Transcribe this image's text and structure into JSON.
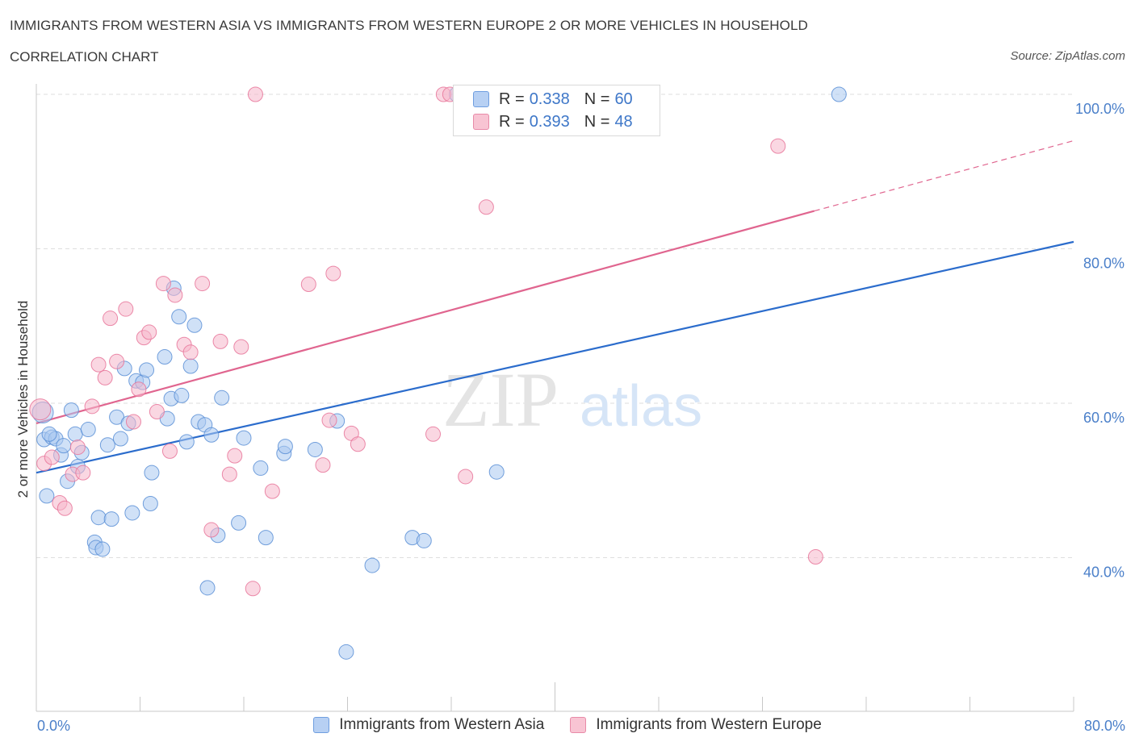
{
  "header": {
    "title": "IMMIGRANTS FROM WESTERN ASIA VS IMMIGRANTS FROM WESTERN EUROPE 2 OR MORE VEHICLES IN HOUSEHOLD",
    "subtitle": "CORRELATION CHART",
    "source": "Source: ZipAtlas.com"
  },
  "watermark": {
    "zip": "ZIP",
    "atlas": "atlas"
  },
  "legend_top": {
    "r_label": "R = ",
    "n_label": "N = ",
    "series1": {
      "r": "0.338",
      "n": "60"
    },
    "series2": {
      "r": "0.393",
      "n": "48"
    }
  },
  "chart_data": {
    "type": "scatter",
    "xlabel": "",
    "ylabel": "2 or more Vehicles in Household",
    "xlim": [
      0,
      80
    ],
    "ylim": [
      20,
      100
    ],
    "x_tick_labels": [
      "0.0%",
      "80.0%"
    ],
    "y_ticks": [
      40,
      60,
      80,
      100
    ],
    "y_tick_labels": [
      "40.0%",
      "60.0%",
      "80.0%",
      "100.0%"
    ],
    "grid": "horizontal dashed",
    "legend_position": "bottom",
    "colors": {
      "blue": "#5b8fd6",
      "blue_fill": "#a9c8f0",
      "pink": "#e8769a",
      "pink_fill": "#f5b7ca",
      "blue_line": "#2b6ccc",
      "pink_line": "#e0658f"
    },
    "series": [
      {
        "name": "Immigrants from Western Asia",
        "color": "blue",
        "trend": {
          "x0": 0,
          "y0": 51.0,
          "x1": 80,
          "y1": 80.9
        },
        "points": [
          [
            0.5,
            58.8
          ],
          [
            0.6,
            55.3
          ],
          [
            0.8,
            48.0
          ],
          [
            1.2,
            55.6
          ],
          [
            1.5,
            55.4
          ],
          [
            1.9,
            53.3
          ],
          [
            2.1,
            54.5
          ],
          [
            2.4,
            49.9
          ],
          [
            2.7,
            59.1
          ],
          [
            3.0,
            56.0
          ],
          [
            3.2,
            51.8
          ],
          [
            3.5,
            53.6
          ],
          [
            4.0,
            56.6
          ],
          [
            4.5,
            42.0
          ],
          [
            4.6,
            41.3
          ],
          [
            4.8,
            45.2
          ],
          [
            5.1,
            41.1
          ],
          [
            5.5,
            54.6
          ],
          [
            5.8,
            45.0
          ],
          [
            6.2,
            58.2
          ],
          [
            6.5,
            55.4
          ],
          [
            6.8,
            64.5
          ],
          [
            7.1,
            57.4
          ],
          [
            7.4,
            45.8
          ],
          [
            7.7,
            62.9
          ],
          [
            8.2,
            62.7
          ],
          [
            8.5,
            64.3
          ],
          [
            8.8,
            47.0
          ],
          [
            8.9,
            51.0
          ],
          [
            9.9,
            66.0
          ],
          [
            10.1,
            58.0
          ],
          [
            10.4,
            60.6
          ],
          [
            10.6,
            74.9
          ],
          [
            11.0,
            71.2
          ],
          [
            11.2,
            61.0
          ],
          [
            11.6,
            55.0
          ],
          [
            11.9,
            64.8
          ],
          [
            12.2,
            70.1
          ],
          [
            12.5,
            57.6
          ],
          [
            13.0,
            57.2
          ],
          [
            13.5,
            55.9
          ],
          [
            14.3,
            60.7
          ],
          [
            13.2,
            36.1
          ],
          [
            14.0,
            42.9
          ],
          [
            15.6,
            44.5
          ],
          [
            16.0,
            55.5
          ],
          [
            17.3,
            51.6
          ],
          [
            17.7,
            42.6
          ],
          [
            19.1,
            53.5
          ],
          [
            19.2,
            54.4
          ],
          [
            21.5,
            54.0
          ],
          [
            23.2,
            57.7
          ],
          [
            23.9,
            27.8
          ],
          [
            25.9,
            39.0
          ],
          [
            29.0,
            42.6
          ],
          [
            29.9,
            42.2
          ],
          [
            32.4,
            100.0
          ],
          [
            35.5,
            51.1
          ],
          [
            61.9,
            100.0
          ],
          [
            1.0,
            56.0
          ]
        ]
      },
      {
        "name": "Immigrants from Western Europe",
        "color": "pink",
        "trend": {
          "x0": 0,
          "y0": 57.4,
          "x1": 60,
          "y1": 84.9,
          "dash_to_x": 80,
          "dash_to_y": 94.0
        },
        "points": [
          [
            0.3,
            59.2
          ],
          [
            0.6,
            52.2
          ],
          [
            1.2,
            53.0
          ],
          [
            1.8,
            47.1
          ],
          [
            2.2,
            46.4
          ],
          [
            2.8,
            50.8
          ],
          [
            3.2,
            54.3
          ],
          [
            3.6,
            51.0
          ],
          [
            4.3,
            59.6
          ],
          [
            4.8,
            65.0
          ],
          [
            5.3,
            63.3
          ],
          [
            5.7,
            71.0
          ],
          [
            6.2,
            65.4
          ],
          [
            6.9,
            72.2
          ],
          [
            7.5,
            57.6
          ],
          [
            7.9,
            61.8
          ],
          [
            8.3,
            68.5
          ],
          [
            8.7,
            69.2
          ],
          [
            9.3,
            58.9
          ],
          [
            9.8,
            75.5
          ],
          [
            10.3,
            53.8
          ],
          [
            10.7,
            74.0
          ],
          [
            11.4,
            67.6
          ],
          [
            11.9,
            66.6
          ],
          [
            12.8,
            75.5
          ],
          [
            13.5,
            43.6
          ],
          [
            14.2,
            68.0
          ],
          [
            14.9,
            50.8
          ],
          [
            15.3,
            53.2
          ],
          [
            15.8,
            67.3
          ],
          [
            16.7,
            36.0
          ],
          [
            16.9,
            100.0
          ],
          [
            18.2,
            48.6
          ],
          [
            21.0,
            75.4
          ],
          [
            22.1,
            52.0
          ],
          [
            22.6,
            57.8
          ],
          [
            22.9,
            76.8
          ],
          [
            24.3,
            56.1
          ],
          [
            24.8,
            54.7
          ],
          [
            30.6,
            56.0
          ],
          [
            31.4,
            100.0
          ],
          [
            31.9,
            100.0
          ],
          [
            33.1,
            50.5
          ],
          [
            34.7,
            85.4
          ],
          [
            39.7,
            100.0
          ],
          [
            41.3,
            100.0
          ],
          [
            57.2,
            93.3
          ],
          [
            60.1,
            40.1
          ]
        ]
      }
    ]
  }
}
